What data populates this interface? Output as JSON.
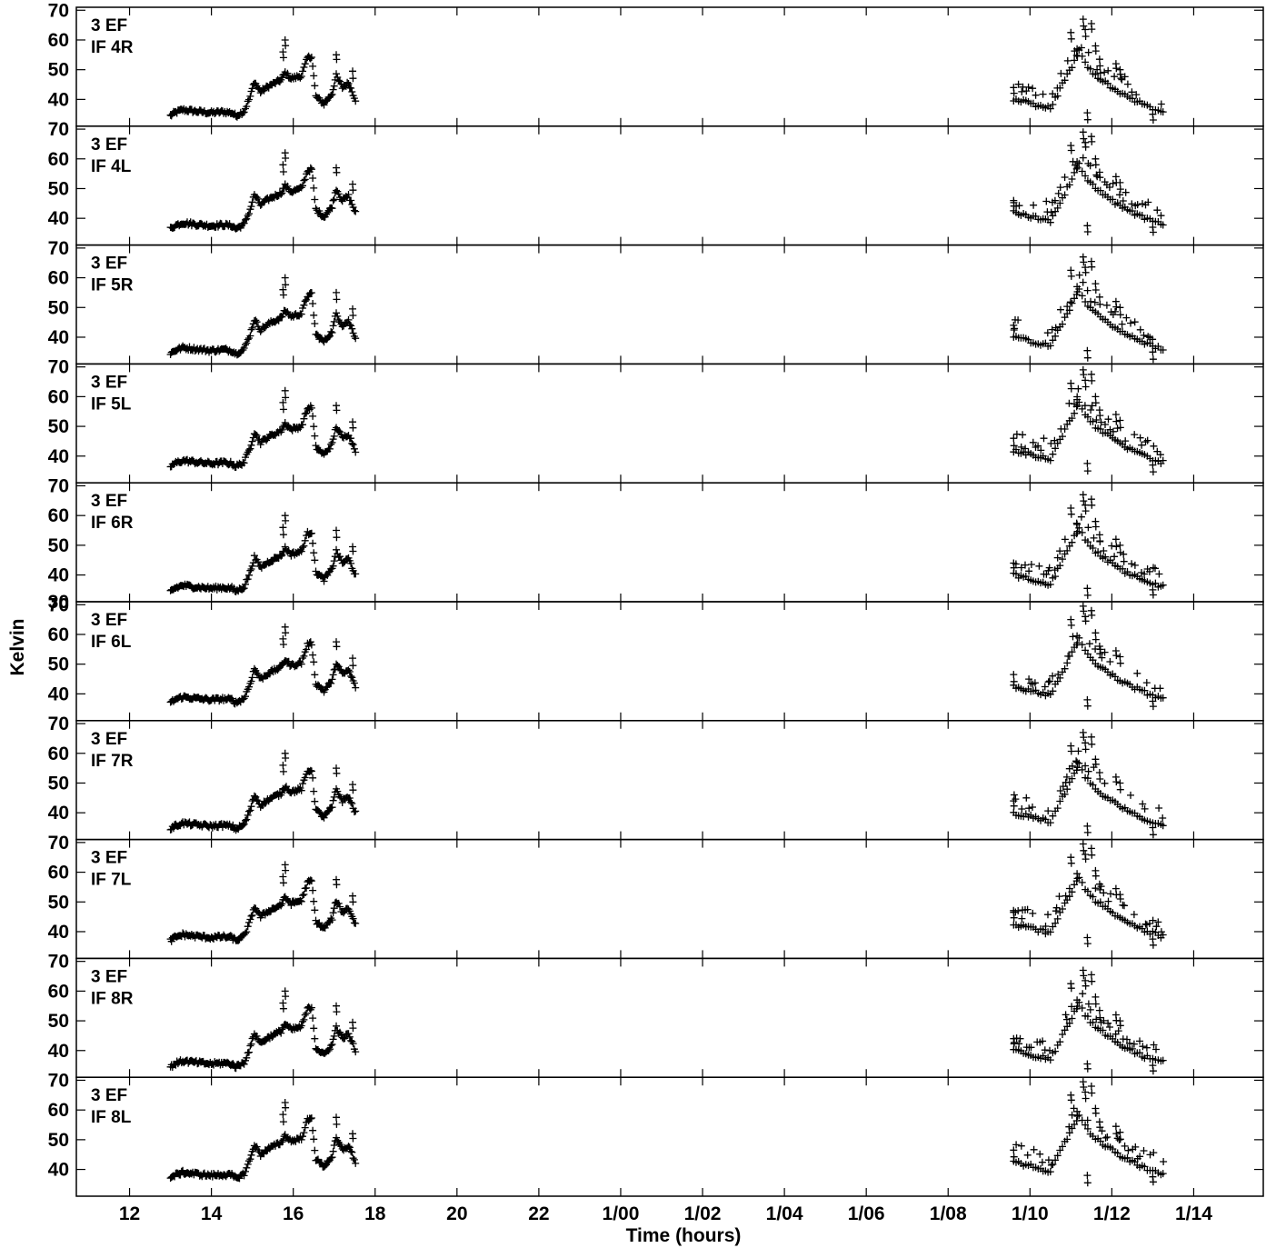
{
  "chart_data": {
    "type": "scatter",
    "marker": "+",
    "x_unit": "hours",
    "xlabel": "Time (hours)",
    "ylabel": "Kelvin",
    "xlim": [
      10.7,
      39.7
    ],
    "ylim": [
      31,
      71
    ],
    "x_ticks": [
      {
        "value": 12,
        "label": "12"
      },
      {
        "value": 14,
        "label": "14"
      },
      {
        "value": 16,
        "label": "16"
      },
      {
        "value": 18,
        "label": "18"
      },
      {
        "value": 20,
        "label": "20"
      },
      {
        "value": 22,
        "label": "22"
      },
      {
        "value": 24,
        "label": "1/00"
      },
      {
        "value": 26,
        "label": "1/02"
      },
      {
        "value": 28,
        "label": "1/04"
      },
      {
        "value": 30,
        "label": "1/06"
      },
      {
        "value": 32,
        "label": "1/08"
      },
      {
        "value": 34,
        "label": "1/10"
      },
      {
        "value": 36,
        "label": "1/12"
      },
      {
        "value": 38,
        "label": "1/14"
      }
    ],
    "y_ticks": [
      {
        "value": 70,
        "label": "70"
      },
      {
        "value": 60,
        "label": "60"
      },
      {
        "value": 50,
        "label": "50"
      },
      {
        "value": 40,
        "label": "40"
      }
    ],
    "bottom_tick_label": "30",
    "base_profile": [
      [
        13.0,
        34.5
      ],
      [
        13.1,
        35.5
      ],
      [
        13.3,
        36.5
      ],
      [
        13.6,
        36.0
      ],
      [
        14.0,
        35.5
      ],
      [
        14.3,
        35.8
      ],
      [
        14.5,
        35.5
      ],
      [
        14.6,
        34.5
      ],
      [
        14.8,
        36.0
      ],
      [
        14.95,
        41.0
      ],
      [
        15.05,
        46.0
      ],
      [
        15.2,
        42.5
      ],
      [
        15.4,
        44.5
      ],
      [
        15.7,
        46.5
      ],
      [
        15.8,
        49.0
      ],
      [
        15.95,
        47.0
      ],
      [
        16.2,
        48.0
      ],
      [
        16.35,
        54.0
      ],
      [
        16.45,
        54.5
      ],
      [
        16.55,
        41.0
      ],
      [
        16.75,
        38.5
      ],
      [
        16.95,
        42.0
      ],
      [
        17.05,
        48.0
      ],
      [
        17.2,
        44.0
      ],
      [
        17.35,
        45.5
      ],
      [
        17.55,
        39.0
      ],
      [
        33.6,
        40.0
      ],
      [
        34.5,
        37.0
      ],
      [
        35.2,
        56.0
      ],
      [
        35.35,
        52.0
      ],
      [
        35.6,
        48.0
      ],
      [
        35.9,
        45.0
      ],
      [
        36.2,
        42.0
      ],
      [
        36.5,
        40.0
      ],
      [
        36.8,
        38.0
      ],
      [
        37.0,
        37.0
      ],
      [
        37.2,
        36.0
      ],
      [
        37.3,
        36.5
      ]
    ],
    "spikes": [
      [
        15.8,
        60.0
      ],
      [
        15.75,
        56.0
      ],
      [
        17.05,
        55.0
      ],
      [
        17.45,
        49.5
      ],
      [
        33.6,
        44.0
      ],
      [
        35.0,
        62.5
      ],
      [
        35.15,
        57.0
      ],
      [
        35.3,
        67.0
      ],
      [
        35.35,
        63.5
      ],
      [
        35.5,
        65.5
      ],
      [
        35.6,
        58.0
      ],
      [
        35.7,
        53.5
      ],
      [
        36.1,
        52.0
      ],
      [
        36.2,
        50.0
      ],
      [
        35.4,
        35.5
      ],
      [
        37.0,
        35.0
      ]
    ],
    "panels": [
      {
        "station": "3 EF",
        "if": "IF 4R",
        "offset": 0.0
      },
      {
        "station": "3 EF",
        "if": "IF 4L",
        "offset": 2.0
      },
      {
        "station": "3 EF",
        "if": "IF 5R",
        "offset": 0.0
      },
      {
        "station": "3 EF",
        "if": "IF 5L",
        "offset": 2.0
      },
      {
        "station": "3 EF",
        "if": "IF 6R",
        "offset": 0.0
      },
      {
        "station": "3 EF",
        "if": "IF 6L",
        "offset": 2.5
      },
      {
        "station": "3 EF",
        "if": "IF 7R",
        "offset": 0.0
      },
      {
        "station": "3 EF",
        "if": "IF 7L",
        "offset": 2.5
      },
      {
        "station": "3 EF",
        "if": "IF 8R",
        "offset": 0.0
      },
      {
        "station": "3 EF",
        "if": "IF 8L",
        "offset": 2.5
      }
    ]
  }
}
